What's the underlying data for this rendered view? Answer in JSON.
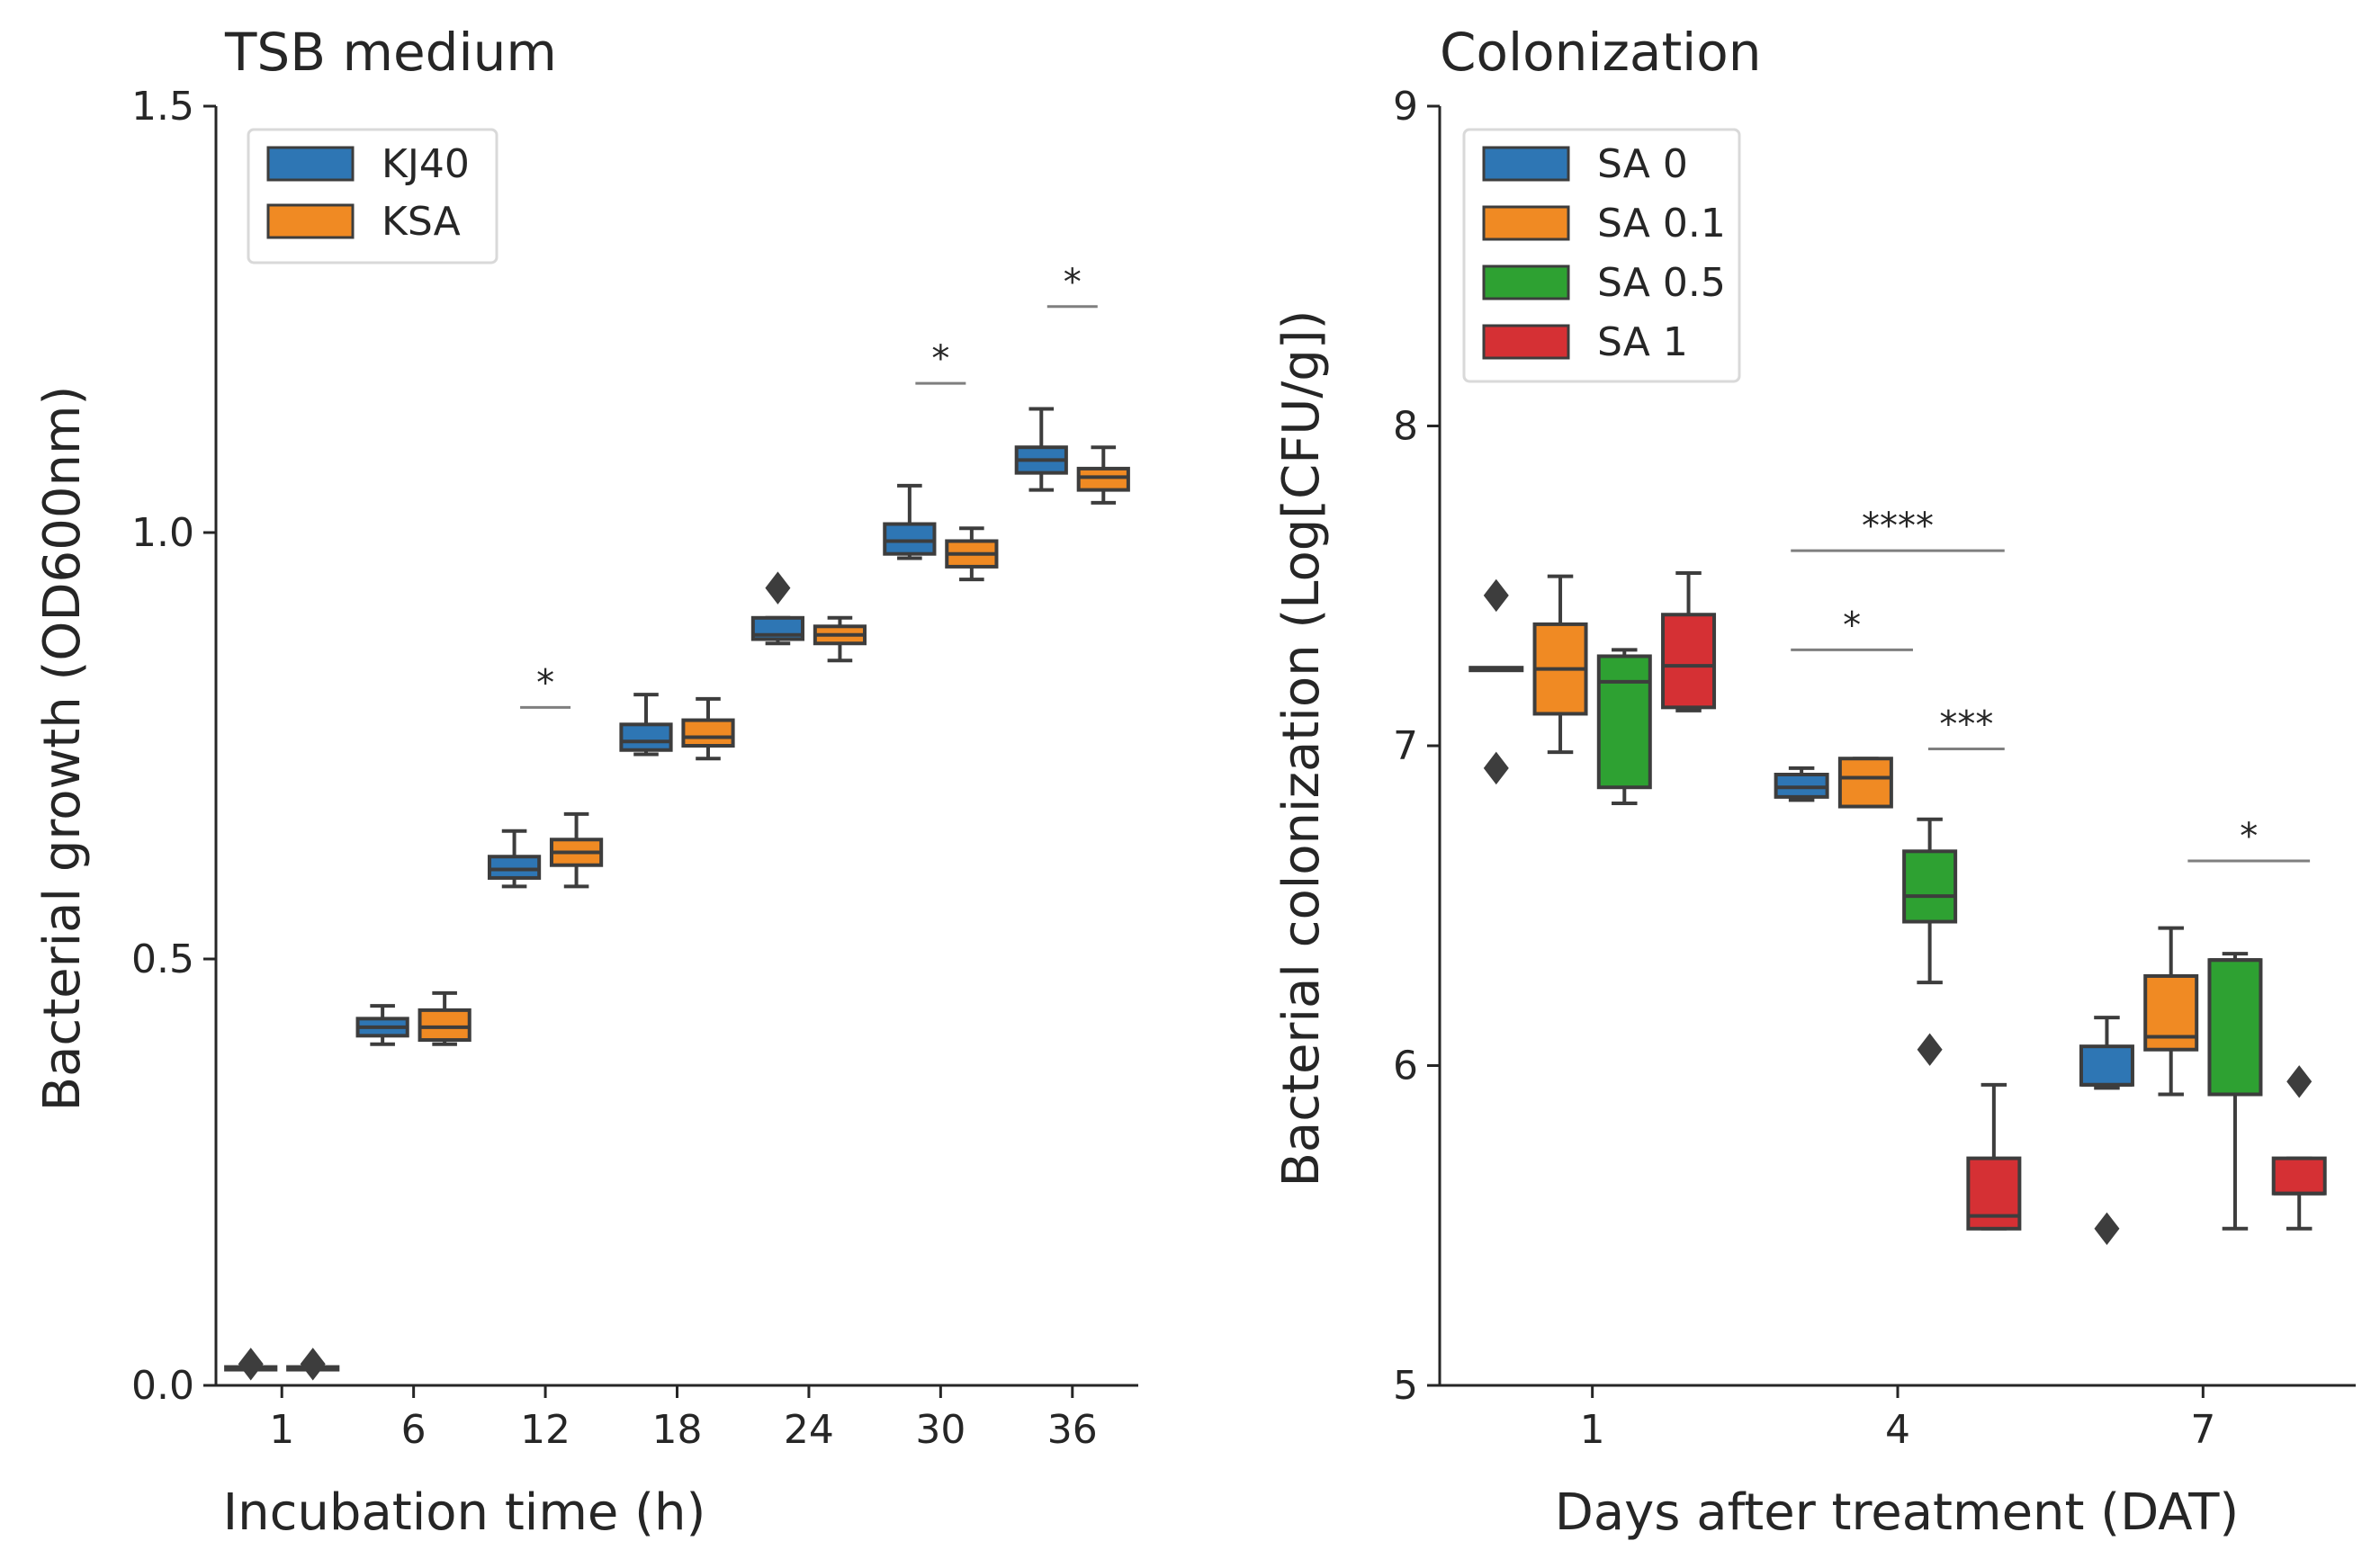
{
  "colors": {
    "blue": "#2e76b4",
    "orange": "#f08a23",
    "green": "#2ea132",
    "red": "#d53034",
    "box_edge": "#3d3d3d",
    "axis": "#262626",
    "sig_line": "#7f7f7f"
  },
  "chart_data": [
    {
      "type": "box",
      "title": "TSB medium",
      "xlabel": "Incubation time (h)",
      "ylabel": "Bacterial growth (OD600nm)",
      "ylim": [
        0.0,
        1.5
      ],
      "yticks": [
        0.0,
        0.5,
        1.0,
        1.5
      ],
      "ytick_labels": [
        "0.0",
        "0.5",
        "1.0",
        "1.5"
      ],
      "categories": [
        "1",
        "6",
        "12",
        "18",
        "24",
        "30",
        "36"
      ],
      "legend": {
        "position": "top-left",
        "entries": [
          {
            "label": "KJ40",
            "color_key": "blue"
          },
          {
            "label": "KSA",
            "color_key": "orange"
          }
        ]
      },
      "series": [
        {
          "name": "KJ40",
          "color_key": "blue",
          "boxes": [
            {
              "whisker_low": 0.02,
              "q1": 0.02,
              "median": 0.02,
              "q3": 0.02,
              "whisker_high": 0.02,
              "fliers": [
                0.025
              ]
            },
            {
              "whisker_low": 0.4,
              "q1": 0.41,
              "median": 0.42,
              "q3": 0.43,
              "whisker_high": 0.445,
              "fliers": []
            },
            {
              "whisker_low": 0.585,
              "q1": 0.595,
              "median": 0.605,
              "q3": 0.62,
              "whisker_high": 0.65,
              "fliers": []
            },
            {
              "whisker_low": 0.74,
              "q1": 0.745,
              "median": 0.755,
              "q3": 0.775,
              "whisker_high": 0.81,
              "fliers": []
            },
            {
              "whisker_low": 0.87,
              "q1": 0.875,
              "median": 0.88,
              "q3": 0.9,
              "whisker_high": 0.9,
              "fliers": [
                0.935
              ]
            },
            {
              "whisker_low": 0.97,
              "q1": 0.975,
              "median": 0.99,
              "q3": 1.01,
              "whisker_high": 1.055,
              "fliers": []
            },
            {
              "whisker_low": 1.05,
              "q1": 1.07,
              "median": 1.085,
              "q3": 1.1,
              "whisker_high": 1.145,
              "fliers": []
            }
          ]
        },
        {
          "name": "KSA",
          "color_key": "orange",
          "boxes": [
            {
              "whisker_low": 0.02,
              "q1": 0.02,
              "median": 0.02,
              "q3": 0.02,
              "whisker_high": 0.02,
              "fliers": [
                0.025
              ]
            },
            {
              "whisker_low": 0.4,
              "q1": 0.405,
              "median": 0.42,
              "q3": 0.44,
              "whisker_high": 0.46,
              "fliers": []
            },
            {
              "whisker_low": 0.585,
              "q1": 0.61,
              "median": 0.625,
              "q3": 0.64,
              "whisker_high": 0.67,
              "fliers": []
            },
            {
              "whisker_low": 0.735,
              "q1": 0.75,
              "median": 0.76,
              "q3": 0.78,
              "whisker_high": 0.805,
              "fliers": []
            },
            {
              "whisker_low": 0.85,
              "q1": 0.87,
              "median": 0.88,
              "q3": 0.89,
              "whisker_high": 0.9,
              "fliers": []
            },
            {
              "whisker_low": 0.945,
              "q1": 0.96,
              "median": 0.975,
              "q3": 0.99,
              "whisker_high": 1.005,
              "fliers": []
            },
            {
              "whisker_low": 1.035,
              "q1": 1.05,
              "median": 1.065,
              "q3": 1.075,
              "whisker_high": 1.1,
              "fliers": []
            }
          ]
        }
      ],
      "significance": [
        {
          "category_index": 2,
          "label": "*",
          "y": 0.795
        },
        {
          "category_index": 5,
          "label": "*",
          "y": 1.175
        },
        {
          "category_index": 6,
          "label": "*",
          "y": 1.265
        }
      ]
    },
    {
      "type": "box",
      "title": "Colonization",
      "xlabel": "Days after treatment (DAT)",
      "ylabel": "Bacterial colonization (Log[CFU/g])",
      "ylim": [
        5,
        9
      ],
      "yticks": [
        5,
        6,
        7,
        8,
        9
      ],
      "ytick_labels": [
        "5",
        "6",
        "7",
        "8",
        "9"
      ],
      "categories": [
        "1",
        "4",
        "7"
      ],
      "legend": {
        "position": "top-left",
        "entries": [
          {
            "label": "SA 0",
            "color_key": "blue"
          },
          {
            "label": "SA 0.1",
            "color_key": "orange"
          },
          {
            "label": "SA 0.5",
            "color_key": "green"
          },
          {
            "label": "SA 1",
            "color_key": "red"
          }
        ]
      },
      "series": [
        {
          "name": "SA 0",
          "color_key": "blue",
          "boxes": [
            {
              "whisker_low": 7.24,
              "q1": 7.24,
              "median": 7.24,
              "q3": 7.24,
              "whisker_high": 7.24,
              "fliers": [
                7.47,
                6.93
              ]
            },
            {
              "whisker_low": 6.83,
              "q1": 6.84,
              "median": 6.87,
              "q3": 6.91,
              "whisker_high": 6.93,
              "fliers": []
            },
            {
              "whisker_low": 5.93,
              "q1": 5.94,
              "median": 5.94,
              "q3": 6.06,
              "whisker_high": 6.15,
              "fliers": [
                5.49
              ]
            }
          ]
        },
        {
          "name": "SA 0.1",
          "color_key": "orange",
          "boxes": [
            {
              "whisker_low": 6.98,
              "q1": 7.1,
              "median": 7.24,
              "q3": 7.38,
              "whisker_high": 7.53,
              "fliers": []
            },
            {
              "whisker_low": 6.81,
              "q1": 6.81,
              "median": 6.9,
              "q3": 6.96,
              "whisker_high": 6.96,
              "fliers": []
            },
            {
              "whisker_low": 5.91,
              "q1": 6.05,
              "median": 6.09,
              "q3": 6.28,
              "whisker_high": 6.43,
              "fliers": []
            }
          ]
        },
        {
          "name": "SA 0.5",
          "color_key": "green",
          "boxes": [
            {
              "whisker_low": 6.82,
              "q1": 6.87,
              "median": 7.2,
              "q3": 7.28,
              "whisker_high": 7.3,
              "fliers": []
            },
            {
              "whisker_low": 6.26,
              "q1": 6.45,
              "median": 6.53,
              "q3": 6.67,
              "whisker_high": 6.77,
              "fliers": [
                6.05
              ]
            },
            {
              "whisker_low": 5.49,
              "q1": 5.91,
              "median": 6.33,
              "q3": 6.33,
              "whisker_high": 6.35,
              "fliers": []
            }
          ]
        },
        {
          "name": "SA 1",
          "color_key": "red",
          "boxes": [
            {
              "whisker_low": 7.11,
              "q1": 7.12,
              "median": 7.25,
              "q3": 7.41,
              "whisker_high": 7.54,
              "fliers": []
            },
            {
              "whisker_low": 5.49,
              "q1": 5.49,
              "median": 5.53,
              "q3": 5.71,
              "whisker_high": 5.94,
              "fliers": []
            },
            {
              "whisker_low": 5.49,
              "q1": 5.6,
              "median": 5.6,
              "q3": 5.71,
              "whisker_high": 5.71,
              "fliers": [
                5.95
              ]
            }
          ]
        }
      ],
      "significance": [
        {
          "category_index": 1,
          "x_from": -0.35,
          "x_to": 0.35,
          "label": "****",
          "y": 7.61
        },
        {
          "category_index": 1,
          "x_from": -0.35,
          "x_to": 0.05,
          "label": "*",
          "y": 7.3
        },
        {
          "category_index": 1,
          "x_from": 0.1,
          "x_to": 0.35,
          "label": "***",
          "y": 6.99
        },
        {
          "category_index": 2,
          "x_from": -0.05,
          "x_to": 0.35,
          "label": "*",
          "y": 6.64
        }
      ]
    }
  ]
}
